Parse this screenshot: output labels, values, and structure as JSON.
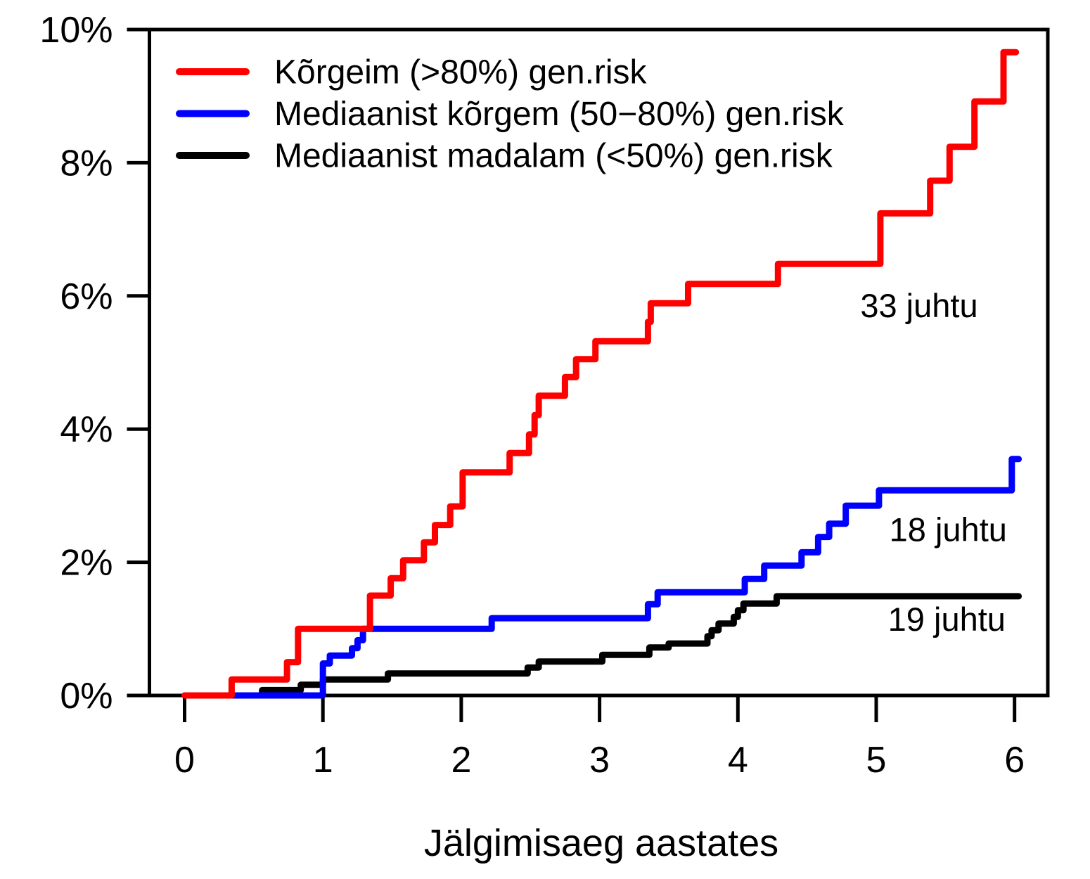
{
  "chart_data": {
    "type": "line",
    "subtype": "step-cumulative-incidence",
    "title": "",
    "xlabel": "Jälgimisaeg aastates",
    "ylabel": "",
    "xlim": [
      -0.25,
      6.25
    ],
    "ylim": [
      0,
      10
    ],
    "grid": false,
    "legend_position": "top-left",
    "x_ticks": [
      {
        "value": 0,
        "label": "0"
      },
      {
        "value": 1,
        "label": "1"
      },
      {
        "value": 2,
        "label": "2"
      },
      {
        "value": 3,
        "label": "3"
      },
      {
        "value": 4,
        "label": "4"
      },
      {
        "value": 5,
        "label": "5"
      },
      {
        "value": 6,
        "label": "6"
      }
    ],
    "y_ticks": [
      {
        "value": 0,
        "label": "0%"
      },
      {
        "value": 2,
        "label": "2%"
      },
      {
        "value": 4,
        "label": "4%"
      },
      {
        "value": 6,
        "label": "6%"
      },
      {
        "value": 8,
        "label": "8%"
      },
      {
        "value": 10,
        "label": "10%"
      }
    ],
    "series": [
      {
        "id": "high-risk",
        "name": "Kõrgeim (>80%) gen.risk",
        "color": "#ff0000",
        "events_annotation": "33 juhtu",
        "start": [
          0,
          0
        ],
        "end_x": 6.01,
        "steps": [
          [
            0.34,
            0.24
          ],
          [
            0.74,
            0.5
          ],
          [
            0.82,
            1.0
          ],
          [
            1.34,
            1.5
          ],
          [
            1.49,
            1.76
          ],
          [
            1.58,
            2.03
          ],
          [
            1.73,
            2.3
          ],
          [
            1.81,
            2.56
          ],
          [
            1.92,
            2.84
          ],
          [
            2.01,
            3.35
          ],
          [
            2.35,
            3.64
          ],
          [
            2.49,
            3.92
          ],
          [
            2.53,
            4.21
          ],
          [
            2.56,
            4.5
          ],
          [
            2.75,
            4.78
          ],
          [
            2.83,
            5.05
          ],
          [
            2.97,
            5.32
          ],
          [
            3.35,
            5.61
          ],
          [
            3.37,
            5.89
          ],
          [
            3.64,
            6.18
          ],
          [
            4.29,
            6.48
          ],
          [
            5.03,
            7.24
          ],
          [
            5.39,
            7.73
          ],
          [
            5.53,
            8.24
          ],
          [
            5.71,
            8.92
          ],
          [
            5.92,
            9.66
          ]
        ]
      },
      {
        "id": "mid-risk",
        "name": "Mediaanist kõrgem (50−80%) gen.risk",
        "color": "#0000ff",
        "events_annotation": "18 juhtu",
        "start": [
          0,
          0
        ],
        "end_x": 6.03,
        "steps": [
          [
            1.0,
            0.48
          ],
          [
            1.05,
            0.6
          ],
          [
            1.21,
            0.71
          ],
          [
            1.25,
            0.83
          ],
          [
            1.29,
            1.0
          ],
          [
            2.22,
            1.16
          ],
          [
            3.35,
            1.37
          ],
          [
            3.42,
            1.55
          ],
          [
            4.05,
            1.75
          ],
          [
            4.19,
            1.95
          ],
          [
            4.46,
            2.15
          ],
          [
            4.58,
            2.38
          ],
          [
            4.66,
            2.58
          ],
          [
            4.78,
            2.85
          ],
          [
            5.02,
            3.08
          ],
          [
            5.98,
            3.55
          ]
        ]
      },
      {
        "id": "low-risk",
        "name": "Mediaanist madalam (<50%) gen.risk",
        "color": "#000000",
        "events_annotation": "19 juhtu",
        "start": [
          0,
          0
        ],
        "end_x": 6.03,
        "steps": [
          [
            0.56,
            0.08
          ],
          [
            0.84,
            0.16
          ],
          [
            1.0,
            0.24
          ],
          [
            1.47,
            0.33
          ],
          [
            2.48,
            0.42
          ],
          [
            2.56,
            0.51
          ],
          [
            3.02,
            0.61
          ],
          [
            3.36,
            0.72
          ],
          [
            3.5,
            0.78
          ],
          [
            3.78,
            0.89
          ],
          [
            3.81,
            0.98
          ],
          [
            3.86,
            1.08
          ],
          [
            3.97,
            1.18
          ],
          [
            4.0,
            1.28
          ],
          [
            4.04,
            1.38
          ],
          [
            4.28,
            1.49
          ]
        ]
      }
    ],
    "annotations": [
      {
        "text": "33 juhtu",
        "color": "#ff0000",
        "x": 5.31,
        "y": 5.68
      },
      {
        "text": "18 juhtu",
        "color": "#0000ff",
        "x": 5.52,
        "y": 2.32
      },
      {
        "text": "19 juhtu",
        "color": "#000000",
        "x": 5.51,
        "y": 0.97
      }
    ]
  }
}
